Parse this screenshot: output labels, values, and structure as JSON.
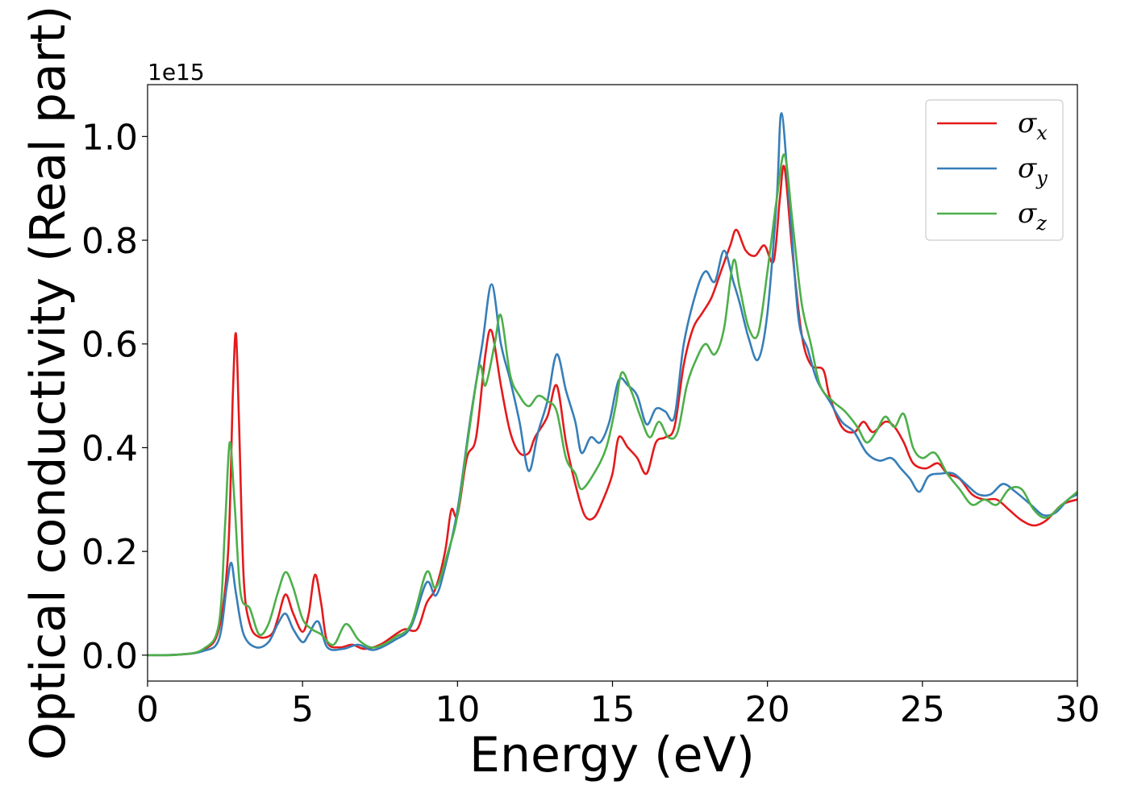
{
  "chart_data": {
    "type": "line",
    "xlabel": "Energy (eV)",
    "ylabel": "Optical conductivity (Real part)",
    "y_offset_label": "1e15",
    "xlim": [
      0,
      30
    ],
    "ylim": [
      -0.05,
      1.1
    ],
    "x_ticks": [
      0,
      5,
      10,
      15,
      20,
      25,
      30
    ],
    "x_tick_labels": [
      "0",
      "5",
      "10",
      "15",
      "20",
      "25",
      "30"
    ],
    "y_ticks": [
      0.0,
      0.2,
      0.4,
      0.6,
      0.8,
      1.0
    ],
    "y_tick_labels": [
      "0.0",
      "0.2",
      "0.4",
      "0.6",
      "0.8",
      "1.0"
    ],
    "grid": false,
    "legend_position": "top-right",
    "series": [
      {
        "name": "σx",
        "symbol": "σ",
        "sub": "x",
        "color": "#e41a1c",
        "points": [
          [
            0,
            0
          ],
          [
            1,
            0.001
          ],
          [
            1.8,
            0.01
          ],
          [
            2.3,
            0.05
          ],
          [
            2.6,
            0.2
          ],
          [
            2.75,
            0.5
          ],
          [
            2.85,
            0.62
          ],
          [
            2.95,
            0.45
          ],
          [
            3.1,
            0.15
          ],
          [
            3.3,
            0.06
          ],
          [
            3.6,
            0.035
          ],
          [
            4.0,
            0.04
          ],
          [
            4.2,
            0.07
          ],
          [
            4.45,
            0.117
          ],
          [
            4.7,
            0.08
          ],
          [
            5.0,
            0.045
          ],
          [
            5.2,
            0.08
          ],
          [
            5.4,
            0.155
          ],
          [
            5.6,
            0.1
          ],
          [
            5.8,
            0.025
          ],
          [
            6.2,
            0.015
          ],
          [
            6.6,
            0.02
          ],
          [
            7.0,
            0.012
          ],
          [
            7.5,
            0.02
          ],
          [
            8.0,
            0.04
          ],
          [
            8.3,
            0.05
          ],
          [
            8.7,
            0.05
          ],
          [
            9.0,
            0.1
          ],
          [
            9.3,
            0.13
          ],
          [
            9.6,
            0.2
          ],
          [
            9.8,
            0.28
          ],
          [
            10.0,
            0.27
          ],
          [
            10.3,
            0.38
          ],
          [
            10.6,
            0.42
          ],
          [
            10.9,
            0.58
          ],
          [
            11.1,
            0.625
          ],
          [
            11.4,
            0.52
          ],
          [
            11.7,
            0.43
          ],
          [
            12.0,
            0.39
          ],
          [
            12.3,
            0.39
          ],
          [
            12.5,
            0.42
          ],
          [
            12.9,
            0.46
          ],
          [
            13.2,
            0.52
          ],
          [
            13.5,
            0.41
          ],
          [
            13.8,
            0.33
          ],
          [
            14.1,
            0.27
          ],
          [
            14.4,
            0.265
          ],
          [
            14.7,
            0.3
          ],
          [
            15.0,
            0.35
          ],
          [
            15.2,
            0.42
          ],
          [
            15.5,
            0.4
          ],
          [
            15.8,
            0.38
          ],
          [
            16.1,
            0.35
          ],
          [
            16.4,
            0.41
          ],
          [
            16.7,
            0.42
          ],
          [
            17.0,
            0.44
          ],
          [
            17.3,
            0.56
          ],
          [
            17.6,
            0.63
          ],
          [
            17.9,
            0.66
          ],
          [
            18.2,
            0.69
          ],
          [
            18.5,
            0.74
          ],
          [
            18.8,
            0.79
          ],
          [
            19.0,
            0.82
          ],
          [
            19.3,
            0.78
          ],
          [
            19.6,
            0.77
          ],
          [
            19.9,
            0.79
          ],
          [
            20.2,
            0.76
          ],
          [
            20.4,
            0.88
          ],
          [
            20.55,
            0.94
          ],
          [
            20.8,
            0.78
          ],
          [
            21.1,
            0.62
          ],
          [
            21.4,
            0.56
          ],
          [
            21.8,
            0.55
          ],
          [
            22.0,
            0.5
          ],
          [
            22.4,
            0.44
          ],
          [
            22.8,
            0.43
          ],
          [
            23.1,
            0.45
          ],
          [
            23.4,
            0.43
          ],
          [
            23.8,
            0.45
          ],
          [
            24.1,
            0.44
          ],
          [
            24.4,
            0.41
          ],
          [
            24.7,
            0.37
          ],
          [
            25.1,
            0.36
          ],
          [
            25.5,
            0.37
          ],
          [
            25.8,
            0.35
          ],
          [
            26.2,
            0.34
          ],
          [
            26.6,
            0.31
          ],
          [
            27.0,
            0.3
          ],
          [
            27.4,
            0.3
          ],
          [
            27.8,
            0.28
          ],
          [
            28.2,
            0.26
          ],
          [
            28.6,
            0.25
          ],
          [
            29.0,
            0.26
          ],
          [
            29.5,
            0.29
          ],
          [
            30,
            0.3
          ]
        ]
      },
      {
        "name": "σy",
        "symbol": "σ",
        "sub": "y",
        "color": "#377eb8",
        "points": [
          [
            0,
            0
          ],
          [
            1,
            0.001
          ],
          [
            1.8,
            0.008
          ],
          [
            2.3,
            0.03
          ],
          [
            2.55,
            0.13
          ],
          [
            2.7,
            0.178
          ],
          [
            2.85,
            0.12
          ],
          [
            3.1,
            0.04
          ],
          [
            3.5,
            0.015
          ],
          [
            3.9,
            0.025
          ],
          [
            4.2,
            0.06
          ],
          [
            4.45,
            0.08
          ],
          [
            4.7,
            0.05
          ],
          [
            5.0,
            0.025
          ],
          [
            5.2,
            0.04
          ],
          [
            5.5,
            0.065
          ],
          [
            5.8,
            0.015
          ],
          [
            6.3,
            0.012
          ],
          [
            6.8,
            0.02
          ],
          [
            7.3,
            0.01
          ],
          [
            8.0,
            0.03
          ],
          [
            8.5,
            0.055
          ],
          [
            9.0,
            0.14
          ],
          [
            9.3,
            0.115
          ],
          [
            9.6,
            0.17
          ],
          [
            10.0,
            0.28
          ],
          [
            10.4,
            0.45
          ],
          [
            10.8,
            0.6
          ],
          [
            11.1,
            0.715
          ],
          [
            11.4,
            0.6
          ],
          [
            11.7,
            0.53
          ],
          [
            12.0,
            0.45
          ],
          [
            12.3,
            0.355
          ],
          [
            12.6,
            0.43
          ],
          [
            12.9,
            0.49
          ],
          [
            13.2,
            0.58
          ],
          [
            13.5,
            0.51
          ],
          [
            13.8,
            0.45
          ],
          [
            14.0,
            0.39
          ],
          [
            14.3,
            0.42
          ],
          [
            14.6,
            0.41
          ],
          [
            14.9,
            0.45
          ],
          [
            15.2,
            0.53
          ],
          [
            15.5,
            0.52
          ],
          [
            15.8,
            0.5
          ],
          [
            16.1,
            0.445
          ],
          [
            16.4,
            0.475
          ],
          [
            16.7,
            0.47
          ],
          [
            17.0,
            0.46
          ],
          [
            17.3,
            0.6
          ],
          [
            17.7,
            0.7
          ],
          [
            18.0,
            0.74
          ],
          [
            18.3,
            0.72
          ],
          [
            18.6,
            0.78
          ],
          [
            18.9,
            0.72
          ],
          [
            19.1,
            0.68
          ],
          [
            19.4,
            0.61
          ],
          [
            19.7,
            0.57
          ],
          [
            20.0,
            0.66
          ],
          [
            20.3,
            0.88
          ],
          [
            20.45,
            1.045
          ],
          [
            20.7,
            0.88
          ],
          [
            21.0,
            0.65
          ],
          [
            21.3,
            0.59
          ],
          [
            21.6,
            0.53
          ],
          [
            22.0,
            0.49
          ],
          [
            22.4,
            0.45
          ],
          [
            22.8,
            0.43
          ],
          [
            23.2,
            0.39
          ],
          [
            23.6,
            0.375
          ],
          [
            24.0,
            0.38
          ],
          [
            24.3,
            0.36
          ],
          [
            24.6,
            0.34
          ],
          [
            24.9,
            0.315
          ],
          [
            25.2,
            0.345
          ],
          [
            25.6,
            0.35
          ],
          [
            26.0,
            0.35
          ],
          [
            26.4,
            0.33
          ],
          [
            26.8,
            0.31
          ],
          [
            27.2,
            0.31
          ],
          [
            27.6,
            0.33
          ],
          [
            28.0,
            0.315
          ],
          [
            28.5,
            0.29
          ],
          [
            28.9,
            0.27
          ],
          [
            29.3,
            0.275
          ],
          [
            29.7,
            0.3
          ],
          [
            30,
            0.31
          ]
        ]
      },
      {
        "name": "σz",
        "symbol": "σ",
        "sub": "z",
        "color": "#4daf4a",
        "points": [
          [
            0,
            0
          ],
          [
            1,
            0.001
          ],
          [
            1.8,
            0.012
          ],
          [
            2.3,
            0.06
          ],
          [
            2.5,
            0.25
          ],
          [
            2.65,
            0.41
          ],
          [
            2.8,
            0.3
          ],
          [
            3.0,
            0.12
          ],
          [
            3.3,
            0.09
          ],
          [
            3.6,
            0.04
          ],
          [
            3.9,
            0.06
          ],
          [
            4.2,
            0.12
          ],
          [
            4.45,
            0.16
          ],
          [
            4.7,
            0.13
          ],
          [
            5.0,
            0.07
          ],
          [
            5.3,
            0.05
          ],
          [
            5.6,
            0.04
          ],
          [
            6.0,
            0.02
          ],
          [
            6.4,
            0.06
          ],
          [
            6.8,
            0.03
          ],
          [
            7.2,
            0.015
          ],
          [
            7.6,
            0.02
          ],
          [
            8.0,
            0.035
          ],
          [
            8.5,
            0.06
          ],
          [
            9.0,
            0.16
          ],
          [
            9.3,
            0.13
          ],
          [
            9.7,
            0.2
          ],
          [
            10.0,
            0.27
          ],
          [
            10.3,
            0.4
          ],
          [
            10.7,
            0.555
          ],
          [
            10.9,
            0.52
          ],
          [
            11.2,
            0.6
          ],
          [
            11.4,
            0.655
          ],
          [
            11.7,
            0.54
          ],
          [
            12.0,
            0.5
          ],
          [
            12.3,
            0.48
          ],
          [
            12.6,
            0.5
          ],
          [
            12.9,
            0.49
          ],
          [
            13.2,
            0.47
          ],
          [
            13.5,
            0.38
          ],
          [
            13.8,
            0.35
          ],
          [
            14.0,
            0.32
          ],
          [
            14.4,
            0.35
          ],
          [
            14.8,
            0.4
          ],
          [
            15.1,
            0.48
          ],
          [
            15.3,
            0.545
          ],
          [
            15.6,
            0.51
          ],
          [
            15.9,
            0.46
          ],
          [
            16.2,
            0.42
          ],
          [
            16.5,
            0.45
          ],
          [
            16.8,
            0.42
          ],
          [
            17.1,
            0.43
          ],
          [
            17.4,
            0.52
          ],
          [
            17.7,
            0.57
          ],
          [
            18.0,
            0.6
          ],
          [
            18.3,
            0.58
          ],
          [
            18.6,
            0.63
          ],
          [
            18.9,
            0.76
          ],
          [
            19.1,
            0.71
          ],
          [
            19.4,
            0.63
          ],
          [
            19.7,
            0.62
          ],
          [
            20.0,
            0.74
          ],
          [
            20.3,
            0.88
          ],
          [
            20.55,
            0.965
          ],
          [
            20.8,
            0.84
          ],
          [
            21.1,
            0.68
          ],
          [
            21.4,
            0.6
          ],
          [
            21.7,
            0.52
          ],
          [
            22.1,
            0.49
          ],
          [
            22.5,
            0.47
          ],
          [
            22.9,
            0.44
          ],
          [
            23.2,
            0.41
          ],
          [
            23.5,
            0.43
          ],
          [
            23.8,
            0.46
          ],
          [
            24.1,
            0.44
          ],
          [
            24.4,
            0.465
          ],
          [
            24.7,
            0.4
          ],
          [
            25.0,
            0.38
          ],
          [
            25.4,
            0.39
          ],
          [
            25.8,
            0.35
          ],
          [
            26.2,
            0.32
          ],
          [
            26.6,
            0.29
          ],
          [
            27.0,
            0.3
          ],
          [
            27.4,
            0.29
          ],
          [
            27.8,
            0.32
          ],
          [
            28.2,
            0.32
          ],
          [
            28.6,
            0.28
          ],
          [
            29.0,
            0.265
          ],
          [
            29.5,
            0.29
          ],
          [
            30,
            0.315
          ]
        ]
      }
    ]
  }
}
